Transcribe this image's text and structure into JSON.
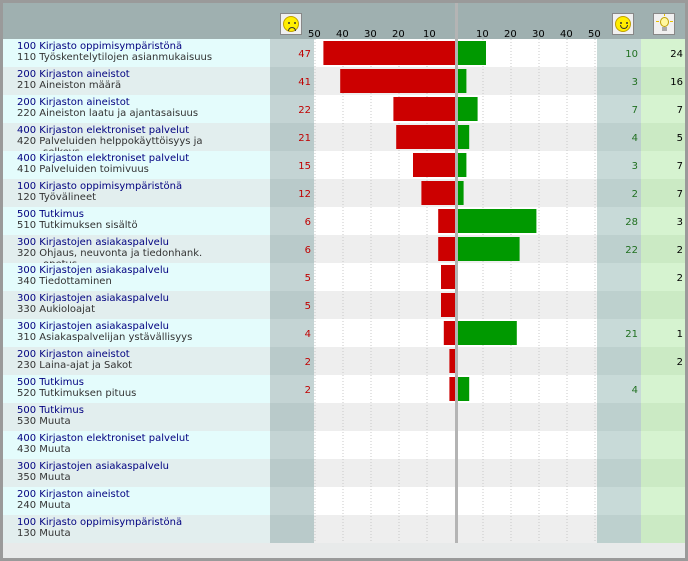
{
  "chart_data": {
    "type": "bar",
    "left_axis_ticks": [
      "50",
      "40",
      "30",
      "20",
      "10"
    ],
    "right_axis_ticks": [
      "10",
      "20",
      "30",
      "40",
      "50"
    ],
    "axis_max": 50,
    "colors": {
      "negative": "#cc0000",
      "positive": "#009900",
      "label": "#000080",
      "neg_text": "#c00000",
      "pos_text": "#207020"
    },
    "rows": [
      {
        "cat": "100  Kirjasto oppimisympäristönä",
        "sub": "110  Työskentelytilojen asianmukaisuus",
        "neg": 47,
        "pos": 10,
        "count": "24"
      },
      {
        "cat": "200  Kirjaston aineistot",
        "sub": "210  Aineiston määrä",
        "neg": 41,
        "pos": 3,
        "count": "16"
      },
      {
        "cat": "200  Kirjaston aineistot",
        "sub": "220  Aineiston laatu ja ajantasaisuus",
        "neg": 22,
        "pos": 7,
        "count": "7"
      },
      {
        "cat": "400  Kirjaston elektroniset palvelut",
        "sub": "420  Palveluiden helppokäyttöisyys ja",
        "sub2": "selkeys",
        "neg": 21,
        "pos": 4,
        "count": "5"
      },
      {
        "cat": "400  Kirjaston elektroniset palvelut",
        "sub": "410  Palveluiden toimivuus",
        "neg": 15,
        "pos": 3,
        "count": "7"
      },
      {
        "cat": "100  Kirjasto oppimisympäristönä",
        "sub": "120  Työvälineet",
        "neg": 12,
        "pos": 2,
        "count": "7"
      },
      {
        "cat": "500  Tutkimus",
        "sub": "510  Tutkimuksen sisältö",
        "neg": 6,
        "pos": 28,
        "count": "3"
      },
      {
        "cat": "300  Kirjastojen asiakaspalvelu",
        "sub": "320  Ohjaus, neuvonta ja tiedonhank.",
        "sub2": "opetus",
        "neg": 6,
        "pos": 22,
        "count": "2"
      },
      {
        "cat": "300  Kirjastojen asiakaspalvelu",
        "sub": "340  Tiedottaminen",
        "neg": 5,
        "pos": null,
        "count": "2"
      },
      {
        "cat": "300  Kirjastojen asiakaspalvelu",
        "sub": "330  Aukioloajat",
        "neg": 5,
        "pos": null,
        "count": ""
      },
      {
        "cat": "300  Kirjastojen asiakaspalvelu",
        "sub": "310  Asiakaspalvelijan ystävällisyys",
        "neg": 4,
        "pos": 21,
        "count": "1"
      },
      {
        "cat": "200  Kirjaston aineistot",
        "sub": "230  Laina-ajat ja Sakot",
        "neg": 2,
        "pos": null,
        "count": "2"
      },
      {
        "cat": "500  Tutkimus",
        "sub": "520  Tutkimuksen pituus",
        "neg": 2,
        "pos": 4,
        "count": ""
      },
      {
        "cat": "500  Tutkimus",
        "sub": "530  Muuta",
        "neg": null,
        "pos": null,
        "count": ""
      },
      {
        "cat": "400  Kirjaston elektroniset palvelut",
        "sub": "430  Muuta",
        "neg": null,
        "pos": null,
        "count": ""
      },
      {
        "cat": "300  Kirjastojen asiakaspalvelu",
        "sub": "350  Muuta",
        "neg": null,
        "pos": null,
        "count": ""
      },
      {
        "cat": "200  Kirjaston aineistot",
        "sub": "240  Muuta",
        "neg": null,
        "pos": null,
        "count": ""
      },
      {
        "cat": "100  Kirjasto oppimisympäristönä",
        "sub": "130  Muuta",
        "neg": null,
        "pos": null,
        "count": ""
      }
    ]
  },
  "icons": {
    "negative_header": "sad-face-icon",
    "positive_header": "happy-face-icon",
    "count_header": "lightbulb-icon"
  }
}
